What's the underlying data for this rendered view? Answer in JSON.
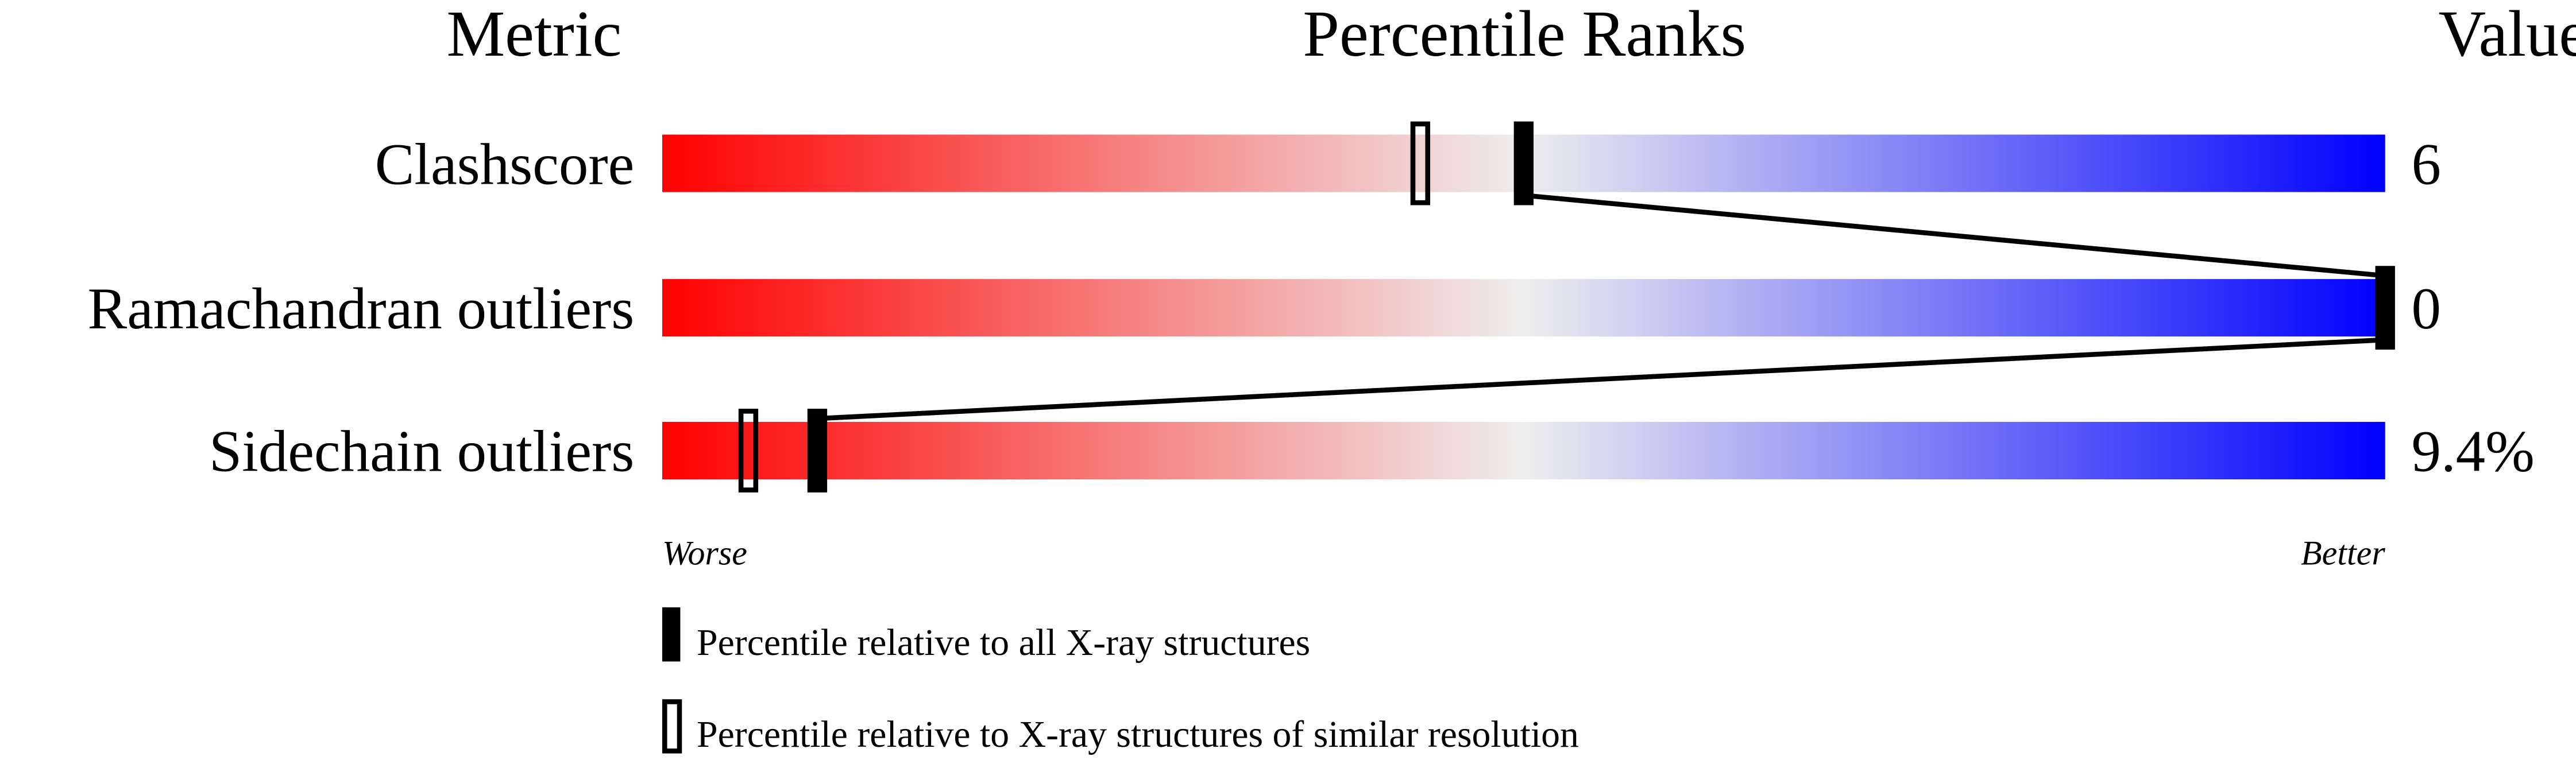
{
  "chart_data": {
    "type": "bar",
    "headers": {
      "metric": "Metric",
      "ranks": "Percentile Ranks",
      "value": "Value"
    },
    "xlim": [
      0,
      100
    ],
    "scale_labels": {
      "low": "Worse",
      "high": "Better"
    },
    "gradient_colors": {
      "worse": "#ff0000",
      "middle": "#eeeeee",
      "better": "#0000ff"
    },
    "metrics": [
      {
        "name": "Clashscore",
        "value": "6",
        "percentile_all": 50,
        "percentile_similar": 44
      },
      {
        "name": "Ramachandran outliers",
        "value": "0",
        "percentile_all": 100,
        "percentile_similar": 100
      },
      {
        "name": "Sidechain outliers",
        "value": "9.4%",
        "percentile_all": 9,
        "percentile_similar": 5
      }
    ],
    "legend": {
      "all": "Percentile relative to all X-ray structures",
      "similar": "Percentile relative to X-ray structures of similar resolution"
    }
  }
}
